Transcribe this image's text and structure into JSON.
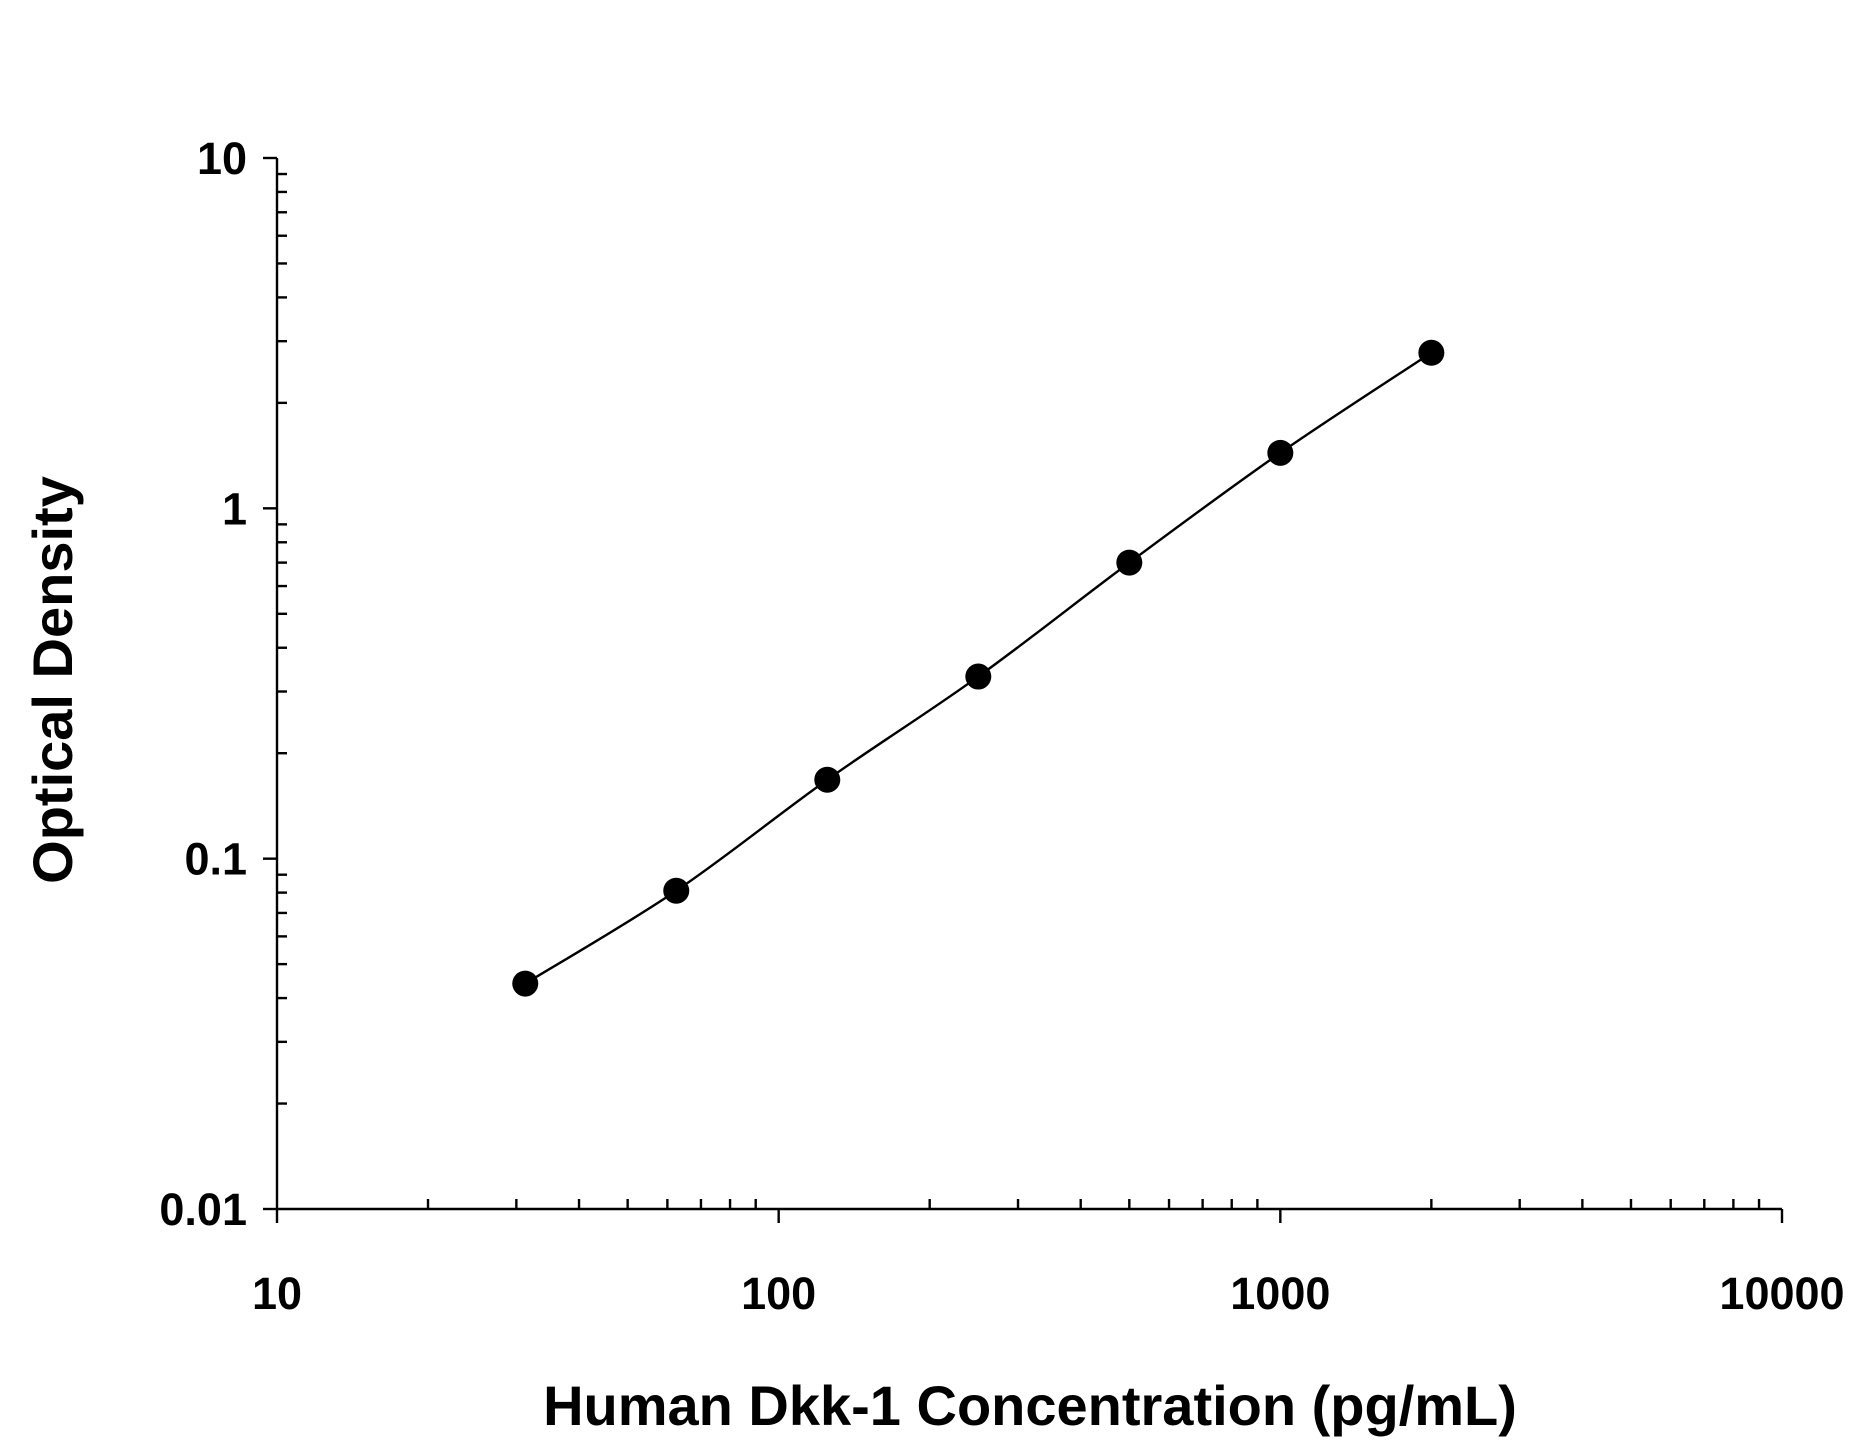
{
  "chart_data": {
    "type": "scatter",
    "xlabel": "Human Dkk-1 Concentration (pg/mL)",
    "ylabel": "Optical Density",
    "xscale": "log",
    "yscale": "log",
    "xlim": [
      10,
      10000
    ],
    "ylim": [
      0.01,
      10
    ],
    "x_tick_labels": [
      "10",
      "100",
      "1000",
      "10000"
    ],
    "y_tick_labels": [
      "0.01",
      "0.1",
      "1",
      "10"
    ],
    "grid": false,
    "fit_curve": true,
    "marker_color": "#000000",
    "line_color": "#000000",
    "series": [
      {
        "x": [
          31.25,
          62.5,
          125,
          250,
          500,
          1000,
          2000
        ],
        "y": [
          0.044,
          0.081,
          0.168,
          0.331,
          0.7,
          1.44,
          2.78
        ]
      }
    ]
  }
}
